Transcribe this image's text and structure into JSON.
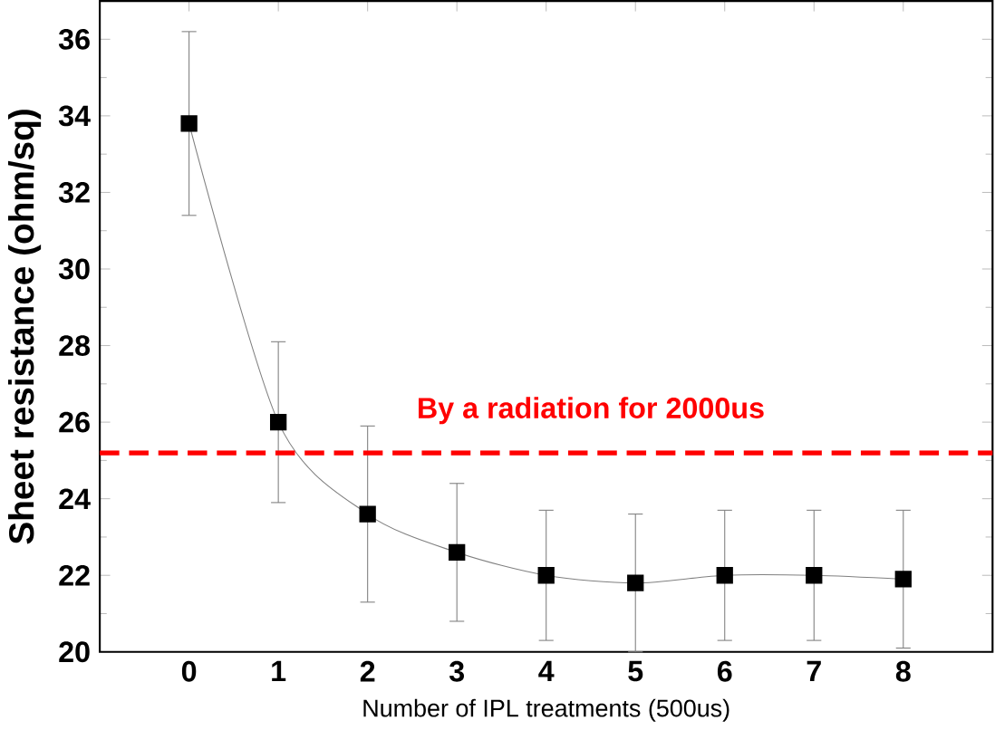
{
  "chart_data": {
    "type": "line",
    "xlabel": "Number of IPL treatments (500us)",
    "ylabel": "Sheet resistance (ohm/sq)",
    "x": [
      0,
      1,
      2,
      3,
      4,
      5,
      6,
      7,
      8
    ],
    "series": [
      {
        "color": "#000000",
        "values": [
          33.8,
          26.0,
          23.6,
          22.6,
          22.0,
          21.8,
          22.0,
          22.0,
          21.9
        ],
        "errors": [
          2.4,
          2.1,
          2.3,
          1.8,
          1.7,
          1.8,
          1.7,
          1.7,
          1.8
        ]
      }
    ],
    "xlim": [
      -1,
      9
    ],
    "ylim": [
      20,
      37
    ],
    "xticks": [
      0,
      1,
      2,
      3,
      4,
      5,
      6,
      7,
      8
    ],
    "yticks": [
      20,
      22,
      24,
      26,
      28,
      30,
      32,
      34,
      36
    ],
    "marker": "square",
    "line_style": "solid",
    "grid": false,
    "ref_lines": [
      {
        "axis": "y",
        "value": 25.2,
        "label": "By a radiation for 2000us",
        "color": "#ff0000",
        "line_style": "dashed"
      }
    ]
  }
}
